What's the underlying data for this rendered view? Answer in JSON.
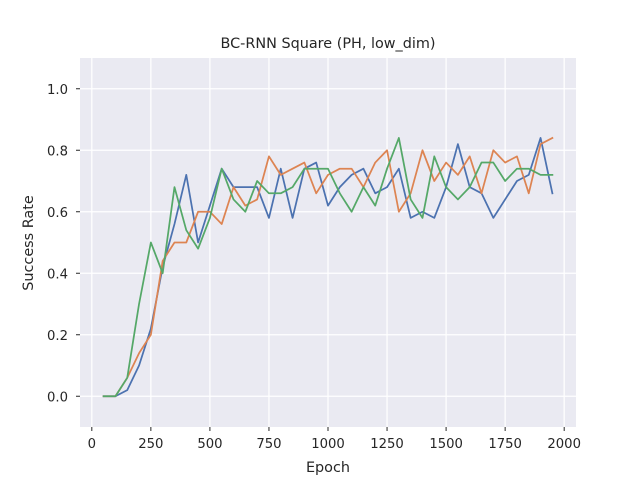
{
  "chart_data": {
    "type": "line",
    "title": "BC-RNN Square (PH, low_dim)",
    "xlabel": "Epoch",
    "ylabel": "Success Rate",
    "xlim": [
      -50,
      2050
    ],
    "ylim": [
      -0.1,
      1.1
    ],
    "xticks": [
      0,
      250,
      500,
      750,
      1000,
      1250,
      1500,
      1750,
      2000
    ],
    "yticks": [
      0.0,
      0.2,
      0.4,
      0.6,
      0.8,
      1.0
    ],
    "xtick_labels": [
      "0",
      "250",
      "500",
      "750",
      "1000",
      "1250",
      "1500",
      "1750",
      "2000"
    ],
    "ytick_labels": [
      "0.0",
      "0.2",
      "0.4",
      "0.6",
      "0.8",
      "1.0"
    ],
    "grid": true,
    "background": "#eaeaf2",
    "x": [
      50,
      100,
      150,
      200,
      250,
      300,
      350,
      400,
      450,
      500,
      550,
      600,
      650,
      700,
      750,
      800,
      850,
      900,
      950,
      1000,
      1050,
      1100,
      1150,
      1200,
      1250,
      1300,
      1350,
      1400,
      1450,
      1500,
      1550,
      1600,
      1650,
      1700,
      1750,
      1800,
      1850,
      1900,
      1950
    ],
    "series": [
      {
        "color": "#4c72b0",
        "values": [
          0.0,
          0.0,
          0.02,
          0.1,
          0.22,
          0.42,
          0.56,
          0.72,
          0.5,
          0.62,
          0.74,
          0.68,
          0.68,
          0.68,
          0.58,
          0.74,
          0.58,
          0.74,
          0.76,
          0.62,
          0.68,
          0.72,
          0.74,
          0.66,
          0.68,
          0.74,
          0.58,
          0.6,
          0.58,
          0.68,
          0.82,
          0.68,
          0.66,
          0.58,
          0.64,
          0.7,
          0.72,
          0.84,
          0.66
        ]
      },
      {
        "color": "#dd8452",
        "values": [
          0.0,
          0.0,
          0.06,
          0.14,
          0.2,
          0.44,
          0.5,
          0.5,
          0.6,
          0.6,
          0.56,
          0.68,
          0.62,
          0.64,
          0.78,
          0.72,
          0.74,
          0.76,
          0.66,
          0.72,
          0.74,
          0.74,
          0.68,
          0.76,
          0.8,
          0.6,
          0.66,
          0.8,
          0.7,
          0.76,
          0.72,
          0.78,
          0.66,
          0.8,
          0.76,
          0.78,
          0.66,
          0.82,
          0.84
        ]
      },
      {
        "color": "#55a868",
        "values": [
          0.0,
          0.0,
          0.06,
          0.3,
          0.5,
          0.4,
          0.68,
          0.54,
          0.48,
          0.58,
          0.74,
          0.64,
          0.6,
          0.7,
          0.66,
          0.66,
          0.68,
          0.74,
          0.74,
          0.74,
          0.66,
          0.6,
          0.68,
          0.62,
          0.74,
          0.84,
          0.64,
          0.58,
          0.78,
          0.68,
          0.64,
          0.68,
          0.76,
          0.76,
          0.7,
          0.74,
          0.74,
          0.72,
          0.72
        ]
      }
    ]
  }
}
